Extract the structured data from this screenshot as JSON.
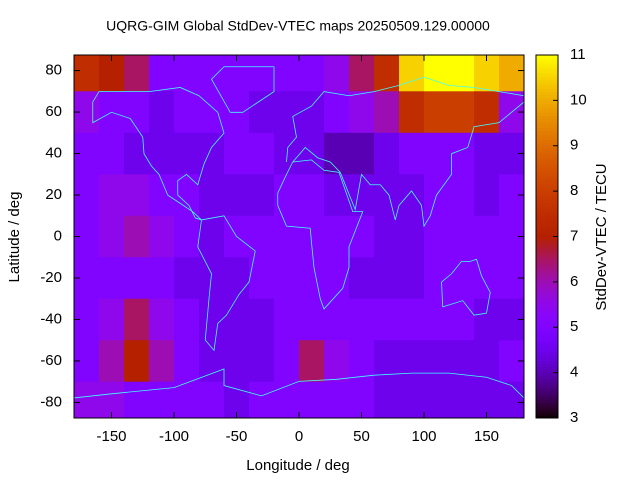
{
  "chart_data": {
    "type": "heatmap",
    "title": "UQRG-GIM Global StdDev-VTEC maps 20250509.129.00000",
    "xlabel": "Longitude / deg",
    "ylabel": "Latitude / deg",
    "colorbar_label": "StdDev-VTEC / TECU",
    "colormap": "gnuplot",
    "x": [
      -170,
      -150,
      -130,
      -110,
      -90,
      -70,
      -50,
      -30,
      -10,
      10,
      30,
      50,
      70,
      90,
      110,
      130,
      150,
      170
    ],
    "y": [
      80,
      60,
      40,
      20,
      0,
      -20,
      -40,
      -60,
      -80
    ],
    "values": [
      [
        7.5,
        7,
        6.5,
        5,
        5,
        5,
        5,
        5,
        5,
        5,
        5.5,
        6.5,
        7.5,
        10.5,
        11,
        11,
        10.5,
        10
      ],
      [
        5.5,
        5,
        5,
        4.5,
        5,
        5,
        5,
        4.5,
        4.5,
        4.5,
        5,
        5.5,
        6,
        7.5,
        8,
        8,
        7.5,
        5.5
      ],
      [
        5,
        5,
        4.5,
        4.5,
        4.5,
        4.5,
        5,
        5,
        4.5,
        4.5,
        4,
        4,
        4.5,
        5,
        5,
        5,
        4.5,
        4.5
      ],
      [
        5,
        5.5,
        5.5,
        5,
        5,
        4.5,
        4.5,
        4.5,
        5,
        5,
        4.5,
        4.5,
        4.5,
        4.5,
        5,
        5,
        4.5,
        5
      ],
      [
        5,
        5.5,
        6,
        5.5,
        5,
        4.5,
        5,
        5,
        5,
        5,
        5,
        5,
        4.5,
        4.5,
        5,
        5,
        5,
        5
      ],
      [
        5,
        5,
        5,
        5,
        4.5,
        4.5,
        4.5,
        5,
        5,
        5,
        5,
        4.5,
        4.5,
        4.5,
        5,
        5,
        5,
        5
      ],
      [
        5,
        5.5,
        6.5,
        5.5,
        5,
        4.5,
        4.5,
        4.5,
        5,
        5,
        5,
        5,
        5,
        5,
        5,
        5,
        4.5,
        4.5
      ],
      [
        5,
        6,
        7,
        6,
        5,
        4.5,
        4.5,
        4.5,
        5,
        6.5,
        5.5,
        5,
        4.5,
        4.5,
        4.5,
        4.5,
        4.5,
        5
      ],
      [
        5.5,
        5.5,
        5,
        5,
        5,
        5,
        4.5,
        5,
        5,
        5,
        5,
        5,
        4.5,
        4.5,
        4.5,
        4.5,
        4.5,
        4.5
      ]
    ],
    "xlim": [
      -180,
      180
    ],
    "ylim": [
      -87.5,
      87.5
    ],
    "clim": [
      3,
      11
    ],
    "xticks": [
      -150,
      -100,
      -50,
      0,
      50,
      100,
      150
    ],
    "yticks": [
      -80,
      -60,
      -40,
      -20,
      0,
      20,
      40,
      60,
      80
    ],
    "cticks": [
      3,
      4,
      5,
      6,
      7,
      8,
      9,
      10,
      11
    ]
  }
}
